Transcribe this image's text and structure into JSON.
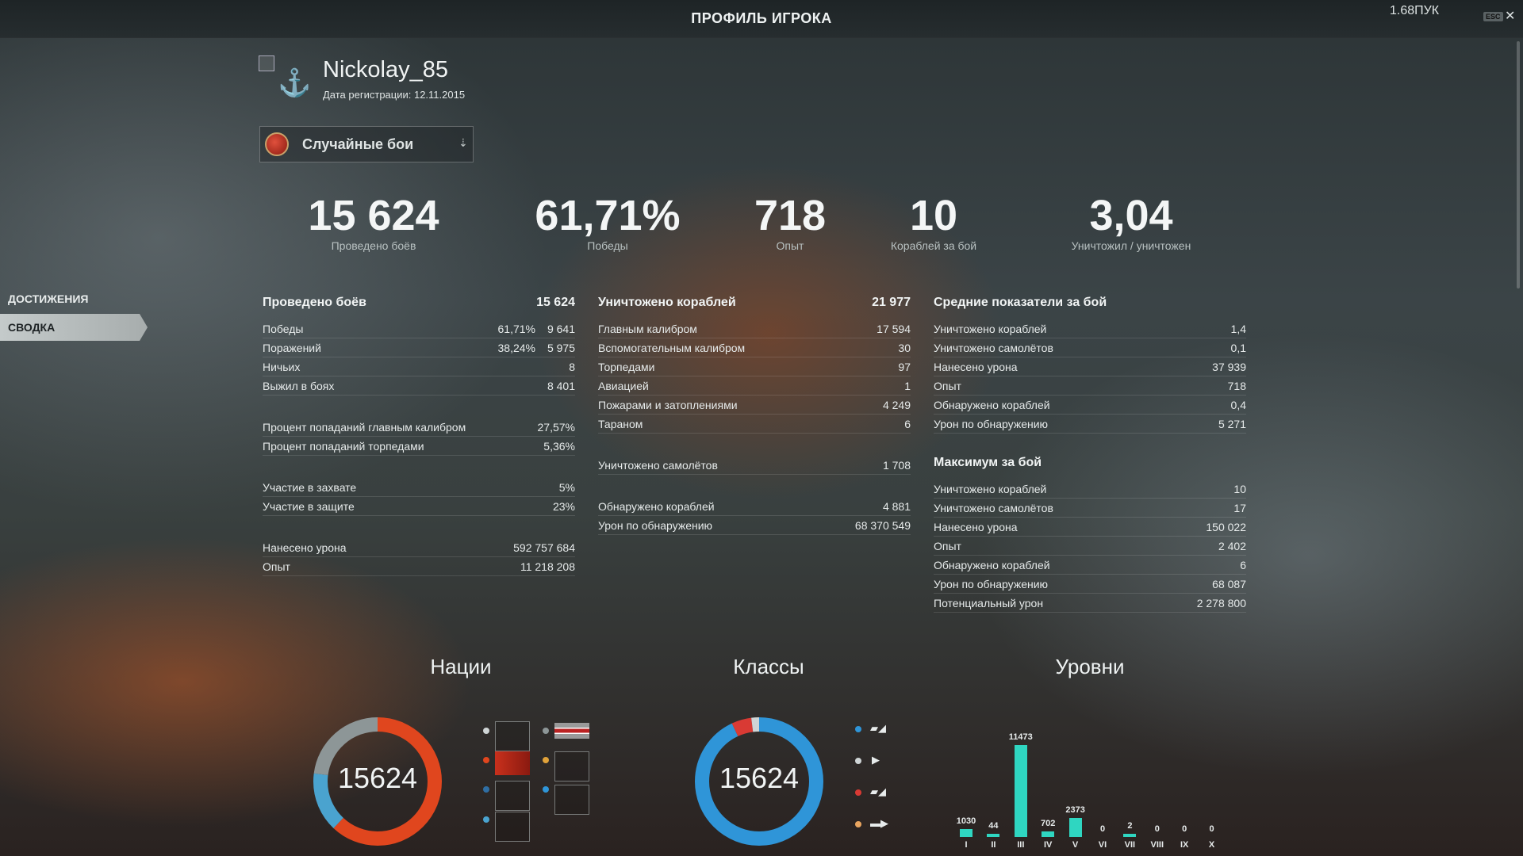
{
  "window": {
    "title": "ПРОФИЛЬ ИГРОКА",
    "build_label": "1.68ПУК",
    "esc_label": "ESC",
    "close_glyph": "✕"
  },
  "player": {
    "name": "Nickolay_85",
    "registered": "Дата регистрации: 12.11.2015",
    "icon": "anchor-icon"
  },
  "mode_select": {
    "selected": "Случайные бои"
  },
  "sidebar": {
    "items": [
      {
        "label": "ДОСТИЖЕНИЯ",
        "active": false
      },
      {
        "label": "СВОДКА",
        "active": true
      }
    ]
  },
  "summary": [
    {
      "value": "15 624",
      "label": "Проведено боёв"
    },
    {
      "value": "61,71%",
      "label": "Победы"
    },
    {
      "value": "718",
      "label": "Опыт"
    },
    {
      "value": "10",
      "label": "Кораблей за бой"
    },
    {
      "value": "3,04",
      "label": "Уничтожил / уничтожен"
    }
  ],
  "battles": {
    "title": "Проведено боёв",
    "total": "15 624",
    "group1": [
      {
        "label": "Победы",
        "pct": "61,71%",
        "value": "9 641"
      },
      {
        "label": "Поражений",
        "pct": "38,24%",
        "value": "5 975"
      },
      {
        "label": "Ничьих",
        "pct": "",
        "value": "8"
      },
      {
        "label": "Выжил в боях",
        "pct": "",
        "value": "8 401"
      }
    ],
    "group2": [
      {
        "label": "Процент попаданий главным калибром",
        "value": "27,57%"
      },
      {
        "label": "Процент попаданий торпедами",
        "value": "5,36%"
      }
    ],
    "group3": [
      {
        "label": "Участие в захвате",
        "value": "5%"
      },
      {
        "label": "Участие в защите",
        "value": "23%"
      }
    ],
    "group4": [
      {
        "label": "Нанесено урона",
        "value": "592 757 684"
      },
      {
        "label": "Опыт",
        "value": "11 218 208"
      }
    ]
  },
  "destroyed": {
    "title": "Уничтожено кораблей",
    "total": "21 977",
    "group1": [
      {
        "label": "Главным калибром",
        "value": "17 594"
      },
      {
        "label": "Вспомогательным калибром",
        "value": "30"
      },
      {
        "label": "Торпедами",
        "value": "97"
      },
      {
        "label": "Авиацией",
        "value": "1"
      },
      {
        "label": "Пожарами и затоплениями",
        "value": "4 249"
      },
      {
        "label": "Тараном",
        "value": "6"
      }
    ],
    "group2": [
      {
        "label": "Уничтожено самолётов",
        "value": "1 708"
      }
    ],
    "group3": [
      {
        "label": "Обнаружено кораблей",
        "value": "4 881"
      },
      {
        "label": "Урон по обнаружению",
        "value": "68 370 549"
      }
    ]
  },
  "averages": {
    "title": "Средние показатели за бой",
    "rows": [
      {
        "label": "Уничтожено кораблей",
        "value": "1,4"
      },
      {
        "label": "Уничтожено самолётов",
        "value": "0,1"
      },
      {
        "label": "Нанесено урона",
        "value": "37 939"
      },
      {
        "label": "Опыт",
        "value": "718"
      },
      {
        "label": "Обнаружено кораблей",
        "value": "0,4"
      },
      {
        "label": "Урон по обнаружению",
        "value": "5 271"
      }
    ]
  },
  "maximum": {
    "title": "Максимум за бой",
    "rows": [
      {
        "label": "Уничтожено кораблей",
        "value": "10"
      },
      {
        "label": "Уничтожено самолётов",
        "value": "17"
      },
      {
        "label": "Нанесено урона",
        "value": "150 022"
      },
      {
        "label": "Опыт",
        "value": "2 402"
      },
      {
        "label": "Обнаружено кораблей",
        "value": "6"
      },
      {
        "label": "Урон по обнаружению",
        "value": "68 087"
      },
      {
        "label": "Потенциальный урон",
        "value": "2 278 800"
      }
    ]
  },
  "charts": {
    "nations_title": "Нации",
    "classes_title": "Классы",
    "tiers_title": "Уровни",
    "nations_total": "15624",
    "classes_total": "15624"
  },
  "colors": {
    "tier_bar": "#2fd6c1",
    "donut_orange": "#e0461e",
    "donut_blue": "#2f95d8",
    "donut_grey": "#8d9697",
    "donut_light_blue": "#4aa3cf",
    "donut_red": "#d93a34"
  },
  "chart_data": [
    {
      "type": "pie",
      "title": "Нации",
      "total": 15624,
      "slices": [
        {
          "color": "#e0461e",
          "fraction": 0.62
        },
        {
          "color": "#4aa3cf",
          "fraction": 0.15
        },
        {
          "color": "#8d9697",
          "fraction": 0.23
        }
      ]
    },
    {
      "type": "pie",
      "title": "Классы",
      "total": 15624,
      "slices": [
        {
          "color": "#2f95d8",
          "fraction": 0.93
        },
        {
          "color": "#d93a34",
          "fraction": 0.05
        },
        {
          "color": "#cfd5d6",
          "fraction": 0.02
        }
      ]
    },
    {
      "type": "bar",
      "title": "Уровни",
      "categories": [
        "I",
        "II",
        "III",
        "IV",
        "V",
        "VI",
        "VII",
        "VIII",
        "IX",
        "X"
      ],
      "values": [
        1030,
        44,
        11473,
        702,
        2373,
        0,
        2,
        0,
        0,
        0
      ]
    }
  ]
}
